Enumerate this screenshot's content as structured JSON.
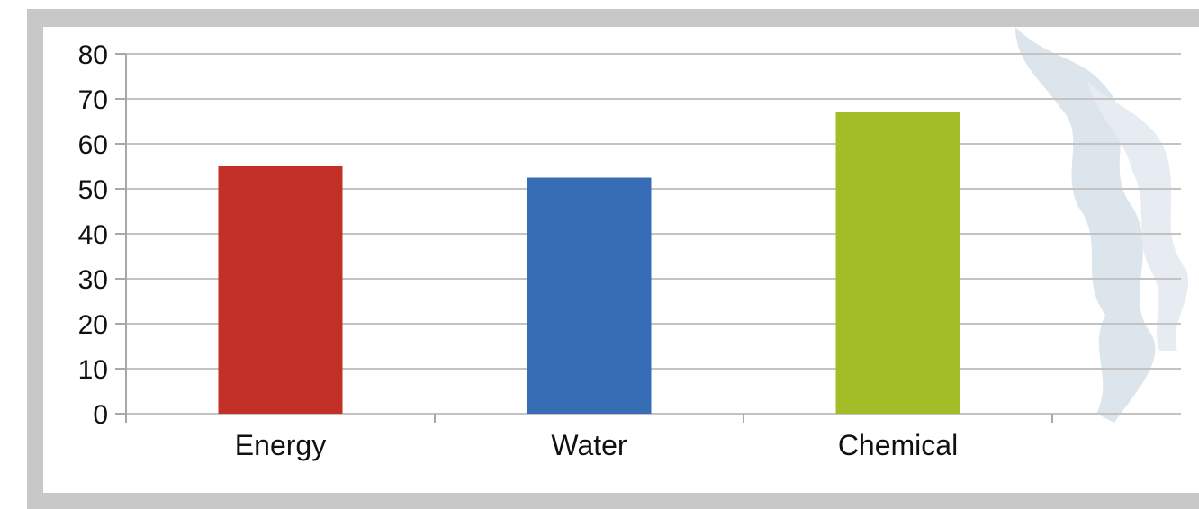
{
  "chart_data": {
    "type": "bar",
    "categories": [
      "Energy",
      "Water",
      "Chemical"
    ],
    "values": [
      55,
      52.5,
      67
    ],
    "colors": [
      "#c33027",
      "#376db5",
      "#a3bd27"
    ],
    "ylim": [
      0,
      80
    ],
    "yticks": [
      0,
      10,
      20,
      30,
      40,
      50,
      60,
      70,
      80
    ],
    "grid": true,
    "legend": "none",
    "title": "",
    "xlabel": "",
    "ylabel": ""
  }
}
